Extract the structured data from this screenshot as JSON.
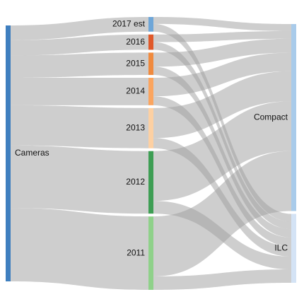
{
  "chart_data": {
    "type": "sankey",
    "title": "",
    "colors": {
      "link": "#9e9e9e",
      "Cameras": "#3f7fbf",
      "2017 est": "#6ea6d8",
      "2016": "#e0592a",
      "2015": "#f08a3e",
      "2014": "#fba55f",
      "2013": "#fdd0a2",
      "2012": "#3e9e54",
      "2011": "#8fd18a",
      "Compact": "#a9cbea",
      "ILC": "#d4e3f5"
    },
    "nodes": [
      {
        "name": "Cameras",
        "column": 0,
        "label": "Cameras"
      },
      {
        "name": "2017 est",
        "column": 1,
        "label": "2017 est"
      },
      {
        "name": "2016",
        "column": 1,
        "label": "2016"
      },
      {
        "name": "2015",
        "column": 1,
        "label": "2015"
      },
      {
        "name": "2014",
        "column": 1,
        "label": "2014"
      },
      {
        "name": "2013",
        "column": 1,
        "label": "2013"
      },
      {
        "name": "2012",
        "column": 1,
        "label": "2012"
      },
      {
        "name": "2011",
        "column": 1,
        "label": "2011"
      },
      {
        "name": "Compact",
        "column": 2,
        "label": "Compact"
      },
      {
        "name": "ILC",
        "column": 2,
        "label": "ILC"
      }
    ],
    "links": [
      {
        "source": "Cameras",
        "target": "2017 est",
        "value": 2.3
      },
      {
        "source": "Cameras",
        "target": "2016",
        "value": 2.4
      },
      {
        "source": "Cameras",
        "target": "2015",
        "value": 3.5
      },
      {
        "source": "Cameras",
        "target": "2014",
        "value": 4.3
      },
      {
        "source": "Cameras",
        "target": "2013",
        "value": 6.3
      },
      {
        "source": "Cameras",
        "target": "2012",
        "value": 9.8
      },
      {
        "source": "Cameras",
        "target": "2011",
        "value": 11.5
      },
      {
        "source": "2017 est",
        "target": "Compact",
        "value": 1.1
      },
      {
        "source": "2017 est",
        "target": "ILC",
        "value": 1.2
      },
      {
        "source": "2016",
        "target": "Compact",
        "value": 1.2
      },
      {
        "source": "2016",
        "target": "ILC",
        "value": 1.2
      },
      {
        "source": "2015",
        "target": "Compact",
        "value": 2.2
      },
      {
        "source": "2015",
        "target": "ILC",
        "value": 1.3
      },
      {
        "source": "2014",
        "target": "Compact",
        "value": 2.9
      },
      {
        "source": "2014",
        "target": "ILC",
        "value": 1.4
      },
      {
        "source": "2013",
        "target": "Compact",
        "value": 4.7
      },
      {
        "source": "2013",
        "target": "ILC",
        "value": 1.6
      },
      {
        "source": "2012",
        "target": "Compact",
        "value": 7.8
      },
      {
        "source": "2012",
        "target": "ILC",
        "value": 2.0
      },
      {
        "source": "2011",
        "target": "Compact",
        "value": 9.4
      },
      {
        "source": "2011",
        "target": "ILC",
        "value": 2.1
      }
    ]
  }
}
